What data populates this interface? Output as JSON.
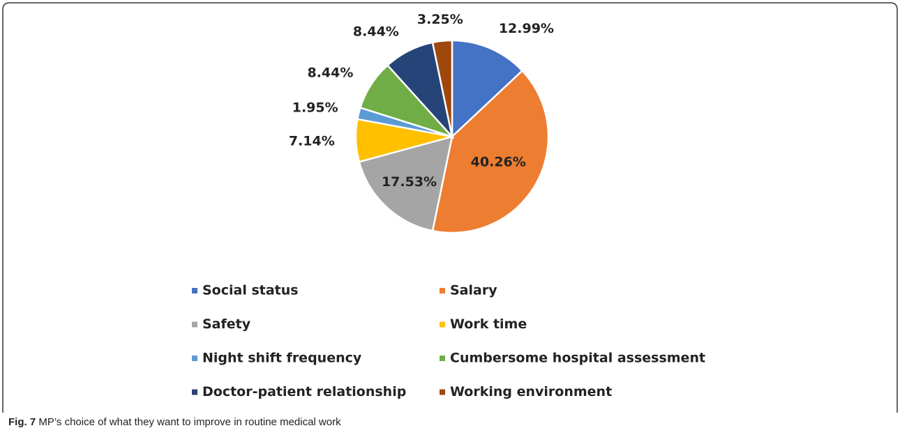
{
  "chart_data": {
    "type": "pie",
    "categories": [
      "Social status",
      "Salary",
      "Safety",
      "Work time",
      "Night shift frequency",
      "Cumbersome hospital assessment",
      "Doctor-patient relationship",
      "Working environment"
    ],
    "values": [
      12.99,
      40.26,
      17.53,
      7.14,
      1.95,
      8.44,
      8.44,
      3.25
    ],
    "value_labels": [
      "12.99%",
      "40.26%",
      "17.53%",
      "7.14%",
      "1.95%",
      "8.44%",
      "8.44%",
      "3.25%"
    ],
    "colors": [
      "#4472c4",
      "#ed7d31",
      "#a5a5a5",
      "#ffc000",
      "#5b9bd5",
      "#70ad47",
      "#264478",
      "#9e480e"
    ],
    "legend": "bottom"
  },
  "caption_label": "Fig. 7",
  "caption": "MP’s choice of what they want to improve in routine medical work"
}
